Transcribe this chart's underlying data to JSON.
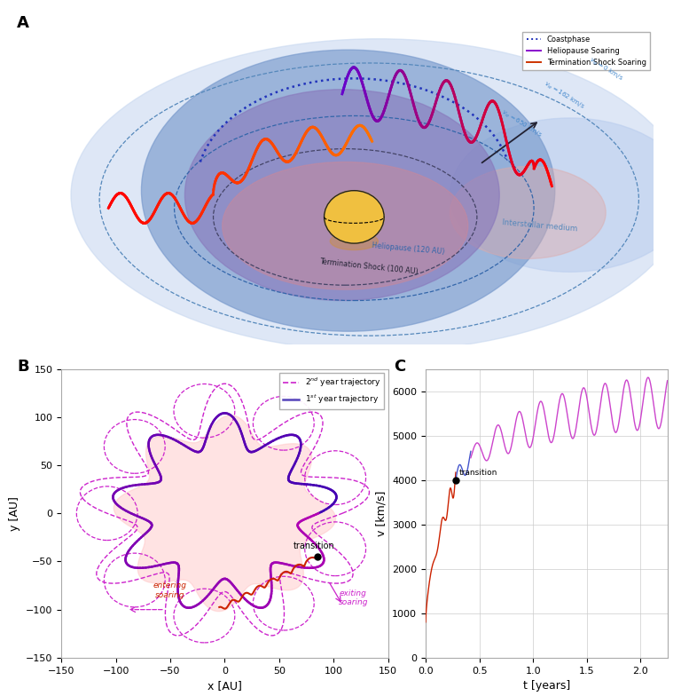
{
  "panel_A": {
    "bg_color": "#dde8f8",
    "sphere_blue_color": "#7799cc",
    "sphere_inner_color": "#8877bb",
    "ts_region_color": "#bb88aa",
    "ism_right_color": "#aabbdd",
    "sun_color": "#f0c040",
    "sun_shadow_color": "#d4a060",
    "ts_label": "Termination Shock (100 AU)",
    "hp_label": "Heliopause (120 AU)",
    "ism_label": "Interstellar medium",
    "coastphase_color": "#2233bb",
    "ts_soaring_color_start": "#cc2200",
    "ts_soaring_color_end": "#cc7700",
    "hp_soaring_color_start": "#6600cc",
    "hp_soaring_color_end": "#cc00aa"
  },
  "panel_B": {
    "xlim": [
      -150,
      150
    ],
    "ylim": [
      -150,
      150
    ],
    "xlabel": "x [AU]",
    "ylabel": "y [AU]",
    "traj2_color": "#cc22cc",
    "traj1_color": "#5544bb",
    "red_color": "#cc2200",
    "transition_x": 85,
    "transition_y": -45,
    "heliosphere_r": 90,
    "blob_perturbation": 12,
    "blob_freq": 8,
    "orbit2_r": 108,
    "orbit1_r": 86,
    "circle_r": 28,
    "n_circles": 9
  },
  "panel_C": {
    "xlim": [
      0,
      2.25
    ],
    "ylim": [
      0,
      6500
    ],
    "xlabel": "t [years]",
    "ylabel": "v [km/s]",
    "transition_t": 0.28,
    "transition_v": 4000,
    "red_color": "#cc2200",
    "blue_color": "#4455cc",
    "magenta_color": "#cc44cc",
    "yticks": [
      0,
      1000,
      2000,
      3000,
      4000,
      5000,
      6000
    ]
  },
  "background_color": "#ffffff"
}
